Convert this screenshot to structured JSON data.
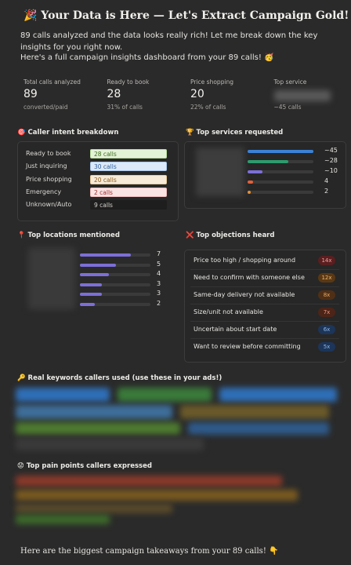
{
  "header": {
    "title": "🎉 Your Data is Here — Let's Extract Campaign Gold!",
    "intro": [
      "89 calls analyzed and the data looks really rich! Let me break down the key insights for you right now.",
      "Here's a full campaign insights dashboard from your 89 calls! 🥳"
    ]
  },
  "stats": [
    {
      "label": "Total calls analyzed",
      "value": "89",
      "sub": "converted/paid"
    },
    {
      "label": "Ready to book",
      "value": "28",
      "sub": "31% of calls"
    },
    {
      "label": "Price shopping",
      "value": "20",
      "sub": "22% of calls"
    },
    {
      "label": "Top service",
      "sub": "~45 calls"
    }
  ],
  "intent": {
    "title": "🎯 Caller intent breakdown",
    "rows": [
      {
        "label": "Ready to book",
        "badge": "28 calls",
        "bg": "#e3f3d6",
        "fg": "#3e6b1f",
        "border": "#b8dc9c"
      },
      {
        "label": "Just inquiring",
        "badge": "30 calls",
        "bg": "#dde9f8",
        "fg": "#2f5f9c",
        "border": "#aac6ea"
      },
      {
        "label": "Price shopping",
        "badge": "20 calls",
        "bg": "#f7ead6",
        "fg": "#8a5a1c",
        "border": "#e6c99c"
      },
      {
        "label": "Emergency",
        "badge": "2 calls",
        "bg": "#fae3e3",
        "fg": "#9c2d2d",
        "border": "#eebcbc"
      },
      {
        "label": "Unknown/Auto",
        "badge": "9 calls",
        "bg": "#1e1e1e",
        "fg": "#d6d4d0",
        "border": "#1e1e1e"
      }
    ]
  },
  "services": {
    "title": "🏆 Top services requested",
    "rows": [
      {
        "value": 45,
        "label": "~45",
        "color": "#3b82d6"
      },
      {
        "value": 28,
        "label": "~28",
        "color": "#2e9b6e"
      },
      {
        "value": 10,
        "label": "~10",
        "color": "#7c6fd8"
      },
      {
        "value": 4,
        "label": "4",
        "color": "#e0603a"
      },
      {
        "value": 2,
        "label": "2",
        "color": "#e0903a"
      }
    ]
  },
  "locations": {
    "title": "📍 Top locations mentioned",
    "color": "#7c6fd8",
    "rows": [
      {
        "value": 7
      },
      {
        "value": 5
      },
      {
        "value": 4
      },
      {
        "value": 3
      },
      {
        "value": 3
      },
      {
        "value": 2
      }
    ]
  },
  "objections": {
    "title": "❌ Top objections heard",
    "rows": [
      {
        "label": "Price too high / shopping around",
        "value": 14,
        "count": "14x",
        "bg": "#5a1e1e",
        "fg": "#f0a0a0"
      },
      {
        "label": "Need to confirm with someone else",
        "value": 12,
        "count": "12x",
        "bg": "#5a3814",
        "fg": "#f0b870"
      },
      {
        "label": "Same-day delivery not available",
        "value": 8,
        "count": "8x",
        "bg": "#4f3016",
        "fg": "#e8a868"
      },
      {
        "label": "Size/unit not available",
        "value": 7,
        "count": "7x",
        "bg": "#4d2418",
        "fg": "#e89880"
      },
      {
        "label": "Uncertain about start date",
        "value": 6,
        "count": "6x",
        "bg": "#1c3558",
        "fg": "#8fb8ea"
      },
      {
        "label": "Want to review before committing",
        "value": 5,
        "count": "5x",
        "bg": "#1c3558",
        "fg": "#8fb8ea"
      }
    ]
  },
  "keywords": {
    "title": "🔑 Real keywords callers used (use these in your ads!)"
  },
  "pain_points": {
    "title": "😟 Top pain points callers expressed"
  },
  "footer": "Here are the biggest campaign takeaways from your 89 calls! 👇"
}
